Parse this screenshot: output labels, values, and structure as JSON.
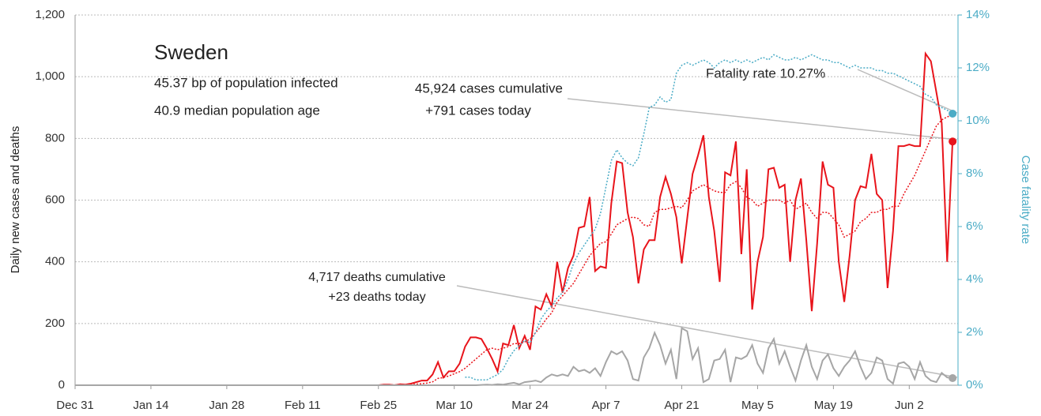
{
  "chart_data": {
    "type": "line",
    "title": "Sweden",
    "subtitle": [
      "45.37 bp of population infected",
      "40.9 median population age"
    ],
    "ylabel": "Daily new cases and deaths",
    "y2label": "Case fatality rate",
    "annotations": [
      "45,924 cases cumulative",
      "+791 cases today",
      "Fatality rate 10.27%",
      "4,717 deaths cumulative",
      "+23 deaths today"
    ],
    "x": [
      0,
      55,
      56,
      57,
      58,
      59,
      60,
      61,
      62,
      63,
      64,
      65,
      66,
      67,
      68,
      69,
      70,
      71,
      72,
      73,
      74,
      75,
      76,
      77,
      78,
      79,
      80,
      81,
      82,
      83,
      84,
      85,
      86,
      87,
      88,
      89,
      90,
      91,
      92,
      93,
      94,
      95,
      96,
      97,
      98,
      99,
      100,
      101,
      102,
      103,
      104,
      105,
      106,
      107,
      108,
      109,
      110,
      111,
      112,
      113,
      114,
      115,
      116,
      117,
      118,
      119,
      120,
      121,
      122,
      123,
      124,
      125,
      126,
      127,
      128,
      129,
      130,
      131,
      132,
      133,
      134,
      135,
      136,
      137,
      138,
      139,
      140,
      141,
      142,
      143,
      144,
      145,
      146,
      147,
      148,
      149,
      150,
      151,
      152,
      153,
      154,
      155,
      156,
      157,
      158,
      159,
      160,
      161,
      162
    ],
    "xlim": [
      0,
      163
    ],
    "xticks": [
      {
        "value": 0,
        "label": "Dec 31"
      },
      {
        "value": 14,
        "label": "Jan 14"
      },
      {
        "value": 28,
        "label": "Jan 28"
      },
      {
        "value": 42,
        "label": "Feb 11"
      },
      {
        "value": 56,
        "label": "Feb 25"
      },
      {
        "value": 70,
        "label": "Mar 10"
      },
      {
        "value": 84,
        "label": "Mar 24"
      },
      {
        "value": 98,
        "label": "Apr 7"
      },
      {
        "value": 112,
        "label": "Apr 21"
      },
      {
        "value": 126,
        "label": "May 5"
      },
      {
        "value": 140,
        "label": "May 19"
      },
      {
        "value": 154,
        "label": "Jun 2"
      }
    ],
    "ylim": [
      0,
      1200
    ],
    "yticks": [
      0,
      200,
      400,
      600,
      800,
      {
        "value": 1000,
        "label": "1,000"
      },
      {
        "value": 1200,
        "label": "1,200"
      }
    ],
    "y2lim": [
      0,
      14
    ],
    "y2ticks": [
      {
        "value": 0,
        "label": "0%"
      },
      {
        "value": 2,
        "label": "2%"
      },
      {
        "value": 4,
        "label": "4%"
      },
      {
        "value": 6,
        "label": "6%"
      },
      {
        "value": 8,
        "label": "8%"
      },
      {
        "value": 10,
        "label": "10%"
      },
      {
        "value": 12,
        "label": "12%"
      },
      {
        "value": 14,
        "label": "14%"
      }
    ],
    "grid": true,
    "series": [
      {
        "color": "#e8141b",
        "style": "solid",
        "end_marker": true,
        "values": [
          0,
          0,
          0,
          2,
          2,
          0,
          3,
          2,
          5,
          10,
          15,
          15,
          35,
          75,
          25,
          45,
          45,
          70,
          125,
          155,
          155,
          150,
          120,
          85,
          45,
          135,
          130,
          195,
          120,
          160,
          115,
          255,
          245,
          295,
          255,
          400,
          300,
          380,
          420,
          510,
          515,
          610,
          370,
          385,
          380,
          590,
          725,
          720,
          560,
          480,
          330,
          440,
          470,
          470,
          610,
          675,
          620,
          545,
          395,
          540,
          685,
          745,
          810,
          610,
          500,
          335,
          690,
          680,
          790,
          425,
          700,
          245,
          400,
          480,
          700,
          705,
          640,
          650,
          400,
          600,
          670,
          470,
          240,
          460,
          725,
          650,
          640,
          400,
          270,
          420,
          600,
          645,
          640,
          750,
          620,
          600,
          315,
          500,
          775,
          775,
          780,
          775,
          775,
          1075,
          1050,
          950,
          850,
          400,
          790
        ]
      },
      {
        "color": "#e8141b",
        "style": "dotted",
        "end_marker": false,
        "values": [
          0,
          0,
          0,
          1,
          1,
          1,
          1,
          1,
          2,
          3,
          5,
          7,
          11,
          22,
          25,
          30,
          37,
          44,
          55,
          70,
          85,
          100,
          115,
          120,
          115,
          120,
          125,
          135,
          135,
          140,
          150,
          170,
          190,
          215,
          235,
          270,
          290,
          310,
          330,
          360,
          390,
          420,
          440,
          460,
          465,
          490,
          520,
          530,
          540,
          545,
          540,
          520,
          515,
          560,
          570,
          570,
          575,
          580,
          575,
          600,
          630,
          640,
          650,
          640,
          630,
          625,
          625,
          650,
          660,
          640,
          610,
          600,
          580,
          590,
          600,
          600,
          600,
          590,
          600,
          570,
          580,
          590,
          560,
          540,
          560,
          560,
          540,
          520,
          480,
          490,
          500,
          530,
          540,
          560,
          560,
          570,
          570,
          580,
          580,
          620,
          650,
          680,
          720,
          760,
          800,
          840,
          860,
          870,
          875
        ]
      },
      {
        "color": "#4bacc6",
        "style": "dotted",
        "axis": "y2",
        "end_marker": true,
        "values": [
          null,
          null,
          null,
          null,
          null,
          null,
          null,
          null,
          null,
          null,
          null,
          null,
          null,
          null,
          null,
          null,
          null,
          null,
          0.3,
          0.3,
          0.2,
          0.2,
          0.2,
          0.3,
          0.4,
          0.6,
          1.0,
          1.3,
          1.5,
          1.7,
          1.6,
          2.0,
          2.5,
          2.8,
          3.0,
          3.3,
          3.5,
          4.0,
          4.6,
          5.0,
          5.3,
          5.6,
          5.9,
          6.5,
          7.5,
          8.5,
          8.9,
          8.6,
          8.4,
          8.3,
          8.6,
          9.5,
          10.5,
          10.6,
          10.9,
          10.7,
          10.8,
          11.8,
          12.1,
          12.2,
          12.1,
          12.2,
          12.3,
          12.2,
          12.0,
          12.2,
          12.3,
          12.2,
          12.3,
          12.2,
          12.3,
          12.2,
          12.3,
          12.4,
          12.3,
          12.5,
          12.4,
          12.3,
          12.3,
          12.4,
          12.3,
          12.4,
          12.5,
          12.4,
          12.3,
          12.3,
          12.2,
          12.2,
          12.1,
          12.0,
          12.1,
          12.0,
          12.0,
          12.0,
          11.9,
          11.9,
          11.8,
          11.8,
          11.7,
          11.6,
          11.5,
          11.4,
          11.3,
          11.0,
          10.9,
          10.6,
          10.5,
          10.4,
          10.27
        ]
      },
      {
        "color": "#a6a6a6",
        "style": "solid",
        "end_marker": true,
        "values": [
          0,
          0,
          0,
          0,
          0,
          0,
          0,
          0,
          0,
          0,
          0,
          0,
          0,
          0,
          0,
          0,
          0,
          0,
          0,
          0,
          0,
          1,
          2,
          1,
          3,
          2,
          5,
          8,
          3,
          10,
          12,
          15,
          10,
          25,
          35,
          30,
          35,
          30,
          60,
          45,
          50,
          40,
          55,
          30,
          75,
          110,
          100,
          110,
          80,
          20,
          15,
          90,
          120,
          170,
          130,
          70,
          115,
          20,
          185,
          175,
          85,
          120,
          10,
          20,
          80,
          85,
          115,
          10,
          90,
          85,
          95,
          130,
          70,
          40,
          120,
          150,
          70,
          110,
          60,
          15,
          80,
          130,
          60,
          20,
          80,
          100,
          55,
          30,
          60,
          80,
          110,
          60,
          20,
          40,
          90,
          80,
          20,
          5,
          70,
          75,
          60,
          20,
          75,
          30,
          15,
          10,
          40,
          25,
          23
        ]
      }
    ]
  }
}
